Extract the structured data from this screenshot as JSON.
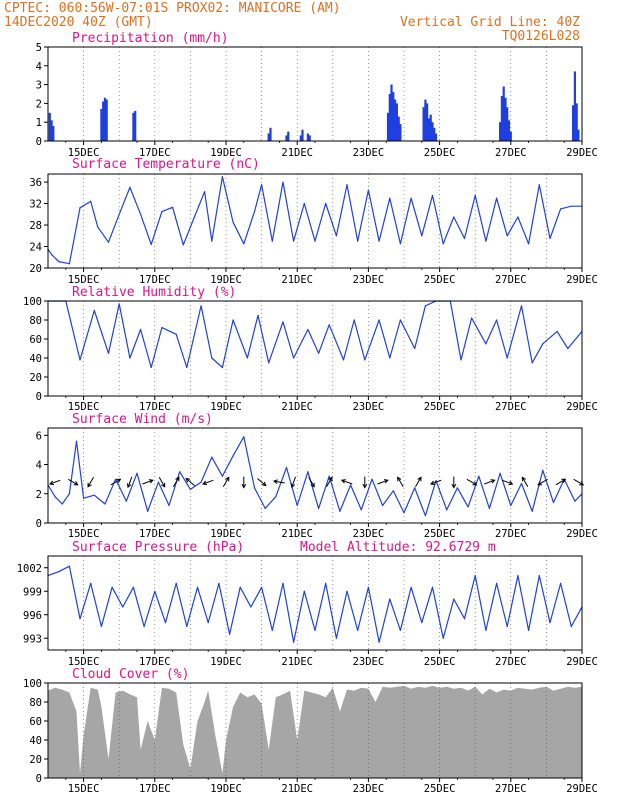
{
  "header": {
    "line1_left": "CPTEC:   060:56W-07:01S   PROX02: MANICORE (AM)",
    "line2_left": "14DEC2020 40Z (GMT)",
    "line2_right": "Vertical Grid Line: 40Z",
    "line3_right": "TQ0126L028"
  },
  "x_axis": {
    "tick_labels": [
      "15DEC",
      "17DEC",
      "19DEC",
      "21DEC",
      "23DEC",
      "25DEC",
      "27DEC",
      "29DEC"
    ],
    "start_day": 14.0,
    "end_day": 29.0
  },
  "colors": {
    "header": "#e07020",
    "panel_title": "#e0148c",
    "series": "#2040e0",
    "bar": "#1f3fe0",
    "cloud": "#a6a6a6",
    "grid": "#555555"
  },
  "chart_data": [
    {
      "id": "precip",
      "type": "bar",
      "title": "Precipitation (mm/h)",
      "ylim": [
        0,
        5
      ],
      "yticks": [
        0,
        1,
        2,
        3,
        4,
        5
      ],
      "x_unit": "day of December 2020",
      "x": [
        14.05,
        14.1,
        14.15,
        15.5,
        15.55,
        15.6,
        15.65,
        16.4,
        16.45,
        20.2,
        20.25,
        20.7,
        20.75,
        21.1,
        21.15,
        21.3,
        21.35,
        23.55,
        23.6,
        23.65,
        23.7,
        23.75,
        23.8,
        23.85,
        23.9,
        24.55,
        24.6,
        24.65,
        24.7,
        24.75,
        24.8,
        24.85,
        24.9,
        26.7,
        26.75,
        26.8,
        26.85,
        26.9,
        26.95,
        27.0,
        28.75,
        28.8,
        28.85,
        28.9
      ],
      "values": [
        1.5,
        1.1,
        0.8,
        1.7,
        2.1,
        2.3,
        2.2,
        1.5,
        1.6,
        0.4,
        0.7,
        0.3,
        0.5,
        0.3,
        0.6,
        0.4,
        0.3,
        1.5,
        2.5,
        3.0,
        2.6,
        2.2,
        2.0,
        1.3,
        0.9,
        1.8,
        2.2,
        2.0,
        1.2,
        1.4,
        1.0,
        0.7,
        0.4,
        1.0,
        2.4,
        2.9,
        2.3,
        1.8,
        1.1,
        0.5,
        1.9,
        3.7,
        2.0,
        0.6
      ]
    },
    {
      "id": "temp",
      "type": "line",
      "title": "Surface Temperature (nC)",
      "ylim": [
        20,
        37.5
      ],
      "yticks": [
        20,
        24,
        28,
        32,
        36
      ],
      "x_unit": "day of December 2020",
      "x": [
        14.0,
        14.1,
        14.3,
        14.6,
        14.9,
        15.2,
        15.4,
        15.7,
        16.0,
        16.3,
        16.6,
        16.9,
        17.2,
        17.5,
        17.8,
        18.1,
        18.4,
        18.6,
        18.9,
        19.2,
        19.5,
        19.8,
        20.0,
        20.3,
        20.6,
        20.9,
        21.2,
        21.5,
        21.8,
        22.1,
        22.4,
        22.7,
        23.0,
        23.3,
        23.6,
        23.9,
        24.2,
        24.5,
        24.8,
        25.1,
        25.4,
        25.7,
        26.0,
        26.3,
        26.6,
        26.9,
        27.2,
        27.5,
        27.8,
        28.1,
        28.4,
        28.7,
        29.0
      ],
      "values": [
        23.5,
        22.5,
        21.2,
        20.8,
        31.2,
        32.4,
        27.6,
        24.8,
        30.0,
        35.0,
        30.0,
        24.4,
        30.5,
        31.3,
        24.3,
        29.3,
        34.2,
        25.0,
        37.0,
        28.5,
        24.5,
        30.5,
        35.5,
        25.0,
        36.0,
        25.0,
        32.0,
        25.0,
        32.0,
        26.0,
        35.5,
        25.0,
        34.5,
        25.0,
        33.0,
        24.5,
        33.0,
        26.0,
        33.5,
        24.5,
        29.5,
        25.5,
        33.5,
        25.0,
        33.0,
        26.0,
        29.5,
        24.5,
        35.5,
        25.5,
        31.0,
        31.5,
        31.5
      ]
    },
    {
      "id": "rh",
      "type": "line",
      "title": "Relative Humidity (%)",
      "ylim": [
        0,
        100
      ],
      "yticks": [
        0,
        20,
        40,
        60,
        80,
        100
      ],
      "x_unit": "day of December 2020",
      "x": [
        14.0,
        14.5,
        14.9,
        15.3,
        15.7,
        16.0,
        16.3,
        16.6,
        16.9,
        17.2,
        17.6,
        17.9,
        18.3,
        18.6,
        18.9,
        19.2,
        19.6,
        19.9,
        20.2,
        20.6,
        20.9,
        21.3,
        21.6,
        21.9,
        22.3,
        22.6,
        22.9,
        23.3,
        23.6,
        23.9,
        24.3,
        24.6,
        24.9,
        25.3,
        25.6,
        25.9,
        26.3,
        26.6,
        26.9,
        27.3,
        27.6,
        27.9,
        28.3,
        28.6,
        29.0
      ],
      "values": [
        100,
        100,
        38,
        90,
        45,
        97,
        40,
        70,
        30,
        72,
        65,
        30,
        95,
        40,
        30,
        80,
        40,
        85,
        35,
        78,
        40,
        70,
        45,
        75,
        38,
        80,
        38,
        80,
        40,
        80,
        50,
        95,
        100,
        100,
        38,
        82,
        55,
        80,
        40,
        95,
        35,
        55,
        68,
        50,
        68
      ]
    },
    {
      "id": "wind",
      "type": "line",
      "title": "Surface Wind (m/s)",
      "ylim": [
        0,
        6.5
      ],
      "yticks": [
        0,
        2,
        4,
        6
      ],
      "x_unit": "day of December 2020",
      "x": [
        14.0,
        14.2,
        14.4,
        14.6,
        14.8,
        15.0,
        15.3,
        15.6,
        15.9,
        16.2,
        16.5,
        16.8,
        17.1,
        17.4,
        17.7,
        18.0,
        18.3,
        18.6,
        18.9,
        19.2,
        19.5,
        19.8,
        20.1,
        20.4,
        20.7,
        21.0,
        21.3,
        21.6,
        21.9,
        22.2,
        22.5,
        22.8,
        23.1,
        23.4,
        23.7,
        24.0,
        24.3,
        24.6,
        24.9,
        25.2,
        25.5,
        25.8,
        26.1,
        26.4,
        26.7,
        27.0,
        27.3,
        27.6,
        27.9,
        28.2,
        28.5,
        28.8,
        29.0
      ],
      "values": [
        2.6,
        1.8,
        1.3,
        2.0,
        5.6,
        1.7,
        1.9,
        1.3,
        3.0,
        1.5,
        3.4,
        0.8,
        2.8,
        1.2,
        3.5,
        2.3,
        2.8,
        4.5,
        3.2,
        4.6,
        5.9,
        2.4,
        1.0,
        1.8,
        3.8,
        1.2,
        3.5,
        1.0,
        3.2,
        0.8,
        2.6,
        0.9,
        3.0,
        1.2,
        2.2,
        0.7,
        2.4,
        0.5,
        2.9,
        0.9,
        2.4,
        1.1,
        3.2,
        1.0,
        3.4,
        1.2,
        2.7,
        0.8,
        3.6,
        1.4,
        3.0,
        1.5,
        2.0
      ],
      "arrow_x": [
        14.2,
        14.7,
        15.2,
        15.9,
        16.3,
        16.8,
        17.2,
        17.6,
        18.0,
        18.5,
        19.0,
        19.5,
        20.0,
        20.5,
        20.9,
        21.4,
        21.9,
        22.4,
        22.9,
        23.4,
        23.9,
        24.4,
        24.9,
        25.4,
        25.9,
        26.4,
        26.9,
        27.4,
        27.9,
        28.4,
        28.9
      ],
      "arrow_dir_deg": [
        200,
        330,
        240,
        30,
        250,
        20,
        300,
        60,
        140,
        200,
        60,
        270,
        320,
        170,
        250,
        300,
        60,
        160,
        270,
        20,
        120,
        60,
        200,
        270,
        330,
        20,
        340,
        120,
        210,
        30,
        330
      ]
    },
    {
      "id": "pressure",
      "type": "line",
      "title": "Surface Pressure (hPa)",
      "annotation": "Model Altitude: 92.6729 m",
      "ylim": [
        991.5,
        1003.5
      ],
      "yticks": [
        993,
        996,
        999,
        1002
      ],
      "x_unit": "day of December 2020",
      "x": [
        14.0,
        14.3,
        14.6,
        14.9,
        15.2,
        15.5,
        15.8,
        16.1,
        16.4,
        16.7,
        17.0,
        17.3,
        17.6,
        17.9,
        18.2,
        18.5,
        18.8,
        19.1,
        19.4,
        19.7,
        20.0,
        20.3,
        20.6,
        20.9,
        21.2,
        21.5,
        21.8,
        22.1,
        22.4,
        22.7,
        23.0,
        23.3,
        23.6,
        23.9,
        24.2,
        24.5,
        24.8,
        25.1,
        25.4,
        25.7,
        26.0,
        26.3,
        26.6,
        26.9,
        27.2,
        27.5,
        27.8,
        28.1,
        28.4,
        28.7,
        29.0
      ],
      "values": [
        1001,
        1001.5,
        1002.2,
        995.5,
        1000,
        994.5,
        999.5,
        997,
        999.5,
        994.5,
        999,
        995,
        1000,
        994.5,
        999.5,
        995,
        1000,
        993.5,
        999.5,
        997,
        999.5,
        994,
        1000,
        992.5,
        999,
        994,
        1000,
        993,
        999,
        994,
        999.5,
        992.5,
        998,
        994,
        999.5,
        995,
        999.5,
        993,
        998,
        995.5,
        1001,
        994,
        1000,
        994.5,
        1001,
        994,
        1001,
        995,
        1000,
        994.5,
        997
      ]
    },
    {
      "id": "cloud",
      "type": "area",
      "title": "Cloud Cover (%)",
      "ylim": [
        0,
        100
      ],
      "yticks": [
        0,
        20,
        40,
        60,
        80,
        100
      ],
      "x_unit": "day of December 2020",
      "x": [
        14.0,
        14.2,
        14.4,
        14.6,
        14.8,
        14.9,
        15.0,
        15.2,
        15.4,
        15.5,
        15.7,
        15.9,
        16.1,
        16.3,
        16.5,
        16.6,
        16.8,
        17.0,
        17.2,
        17.4,
        17.6,
        17.8,
        18.0,
        18.2,
        18.4,
        18.5,
        18.7,
        18.9,
        19.0,
        19.2,
        19.4,
        19.6,
        19.8,
        20.0,
        20.2,
        20.4,
        20.6,
        20.8,
        21.0,
        21.2,
        21.4,
        21.6,
        21.8,
        22.0,
        22.2,
        22.4,
        22.6,
        22.8,
        23.0,
        23.2,
        23.4,
        23.6,
        23.8,
        24.0,
        24.2,
        24.4,
        24.6,
        24.8,
        25.0,
        25.2,
        25.4,
        25.6,
        25.8,
        26.0,
        26.2,
        26.4,
        26.6,
        26.8,
        27.0,
        27.2,
        27.4,
        27.6,
        27.8,
        28.0,
        28.2,
        28.4,
        28.6,
        28.8,
        29.0
      ],
      "values": [
        92,
        95,
        93,
        90,
        70,
        5,
        45,
        95,
        93,
        75,
        20,
        90,
        92,
        88,
        85,
        30,
        60,
        40,
        95,
        94,
        90,
        35,
        10,
        60,
        80,
        92,
        45,
        5,
        40,
        75,
        90,
        85,
        88,
        78,
        30,
        85,
        88,
        92,
        40,
        92,
        90,
        88,
        85,
        95,
        70,
        93,
        92,
        95,
        94,
        80,
        96,
        95,
        96,
        97,
        94,
        96,
        95,
        97,
        95,
        96,
        94,
        95,
        92,
        96,
        88,
        94,
        90,
        93,
        92,
        95,
        94,
        93,
        95,
        96,
        92,
        94,
        96,
        95,
        96
      ]
    }
  ]
}
